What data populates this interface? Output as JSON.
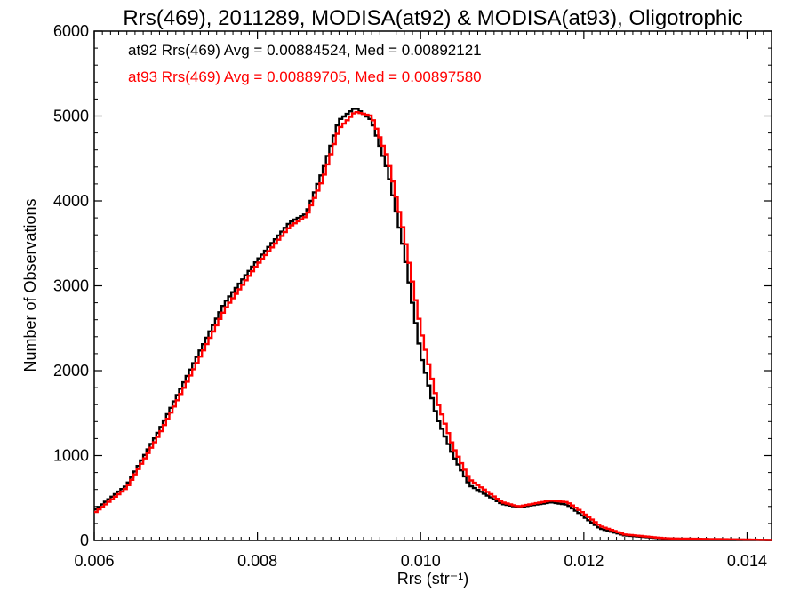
{
  "chart_data": {
    "type": "line",
    "title": "Rrs(469), 2011289, MODISA(at92) & MODISA(at93), Oligotrophic",
    "xlabel": "Rrs (str⁻¹)",
    "ylabel": "Number of Observations",
    "xlim": [
      0.006,
      0.0143
    ],
    "ylim": [
      0,
      6000
    ],
    "x_ticks": [
      "0.006",
      "0.008",
      "0.010",
      "0.012",
      "0.014"
    ],
    "y_ticks": [
      "0",
      "1000",
      "2000",
      "3000",
      "4000",
      "5000",
      "6000"
    ],
    "grid": false,
    "legend_position": "top-left",
    "step": true,
    "series": [
      {
        "name": "at92 Rrs(469) Avg = 0.00884524, Med = 0.00892121",
        "color": "#000000",
        "points": [
          [
            0.006,
            350
          ],
          [
            0.0064,
            650
          ],
          [
            0.0068,
            1300
          ],
          [
            0.0072,
            2050
          ],
          [
            0.0076,
            2800
          ],
          [
            0.008,
            3300
          ],
          [
            0.0084,
            3750
          ],
          [
            0.0086,
            3850
          ],
          [
            0.0088,
            4350
          ],
          [
            0.009,
            4950
          ],
          [
            0.0092,
            5100
          ],
          [
            0.0094,
            4950
          ],
          [
            0.0096,
            4350
          ],
          [
            0.0098,
            3400
          ],
          [
            0.01,
            2200
          ],
          [
            0.0102,
            1450
          ],
          [
            0.0104,
            1000
          ],
          [
            0.0106,
            650
          ],
          [
            0.011,
            430
          ],
          [
            0.0112,
            390
          ],
          [
            0.0116,
            450
          ],
          [
            0.0118,
            420
          ],
          [
            0.012,
            280
          ],
          [
            0.0122,
            140
          ],
          [
            0.0125,
            60
          ],
          [
            0.013,
            20
          ],
          [
            0.0143,
            5
          ]
        ]
      },
      {
        "name": "at93 Rrs(469) Avg = 0.00889705, Med = 0.00897580",
        "color": "#ff0000",
        "points": [
          [
            0.006,
            320
          ],
          [
            0.0064,
            620
          ],
          [
            0.0068,
            1250
          ],
          [
            0.0072,
            1980
          ],
          [
            0.0076,
            2720
          ],
          [
            0.008,
            3250
          ],
          [
            0.0084,
            3700
          ],
          [
            0.0086,
            3820
          ],
          [
            0.0088,
            4250
          ],
          [
            0.009,
            4850
          ],
          [
            0.0092,
            5050
          ],
          [
            0.0094,
            5000
          ],
          [
            0.0096,
            4500
          ],
          [
            0.0098,
            3600
          ],
          [
            0.01,
            2500
          ],
          [
            0.0102,
            1650
          ],
          [
            0.0104,
            1100
          ],
          [
            0.0106,
            720
          ],
          [
            0.011,
            450
          ],
          [
            0.0112,
            400
          ],
          [
            0.0116,
            470
          ],
          [
            0.0118,
            450
          ],
          [
            0.012,
            320
          ],
          [
            0.0122,
            170
          ],
          [
            0.0125,
            70
          ],
          [
            0.013,
            25
          ],
          [
            0.0143,
            6
          ]
        ]
      }
    ]
  }
}
